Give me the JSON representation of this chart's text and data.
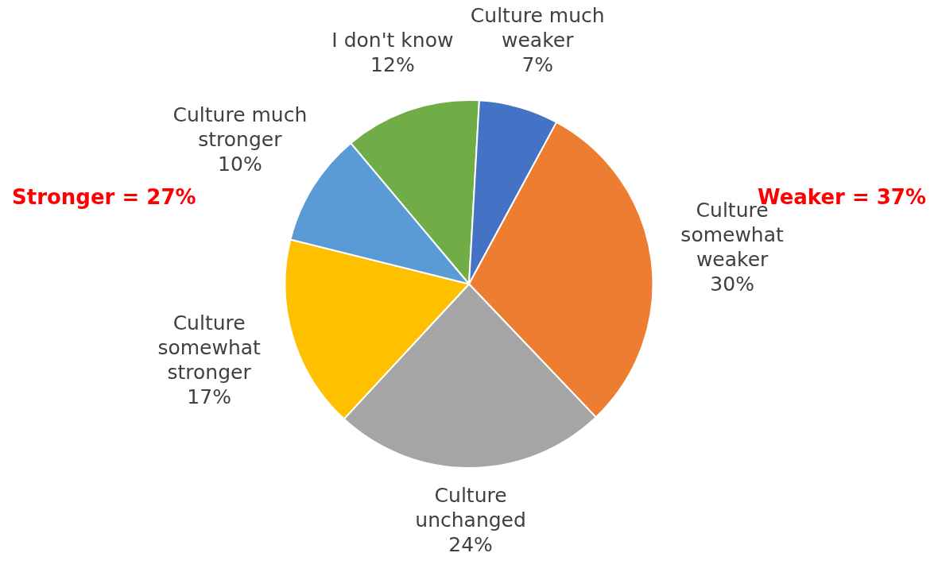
{
  "chart_data": {
    "type": "pie",
    "categories": [
      "I don't know",
      "Culture much weaker",
      "Culture somewhat weaker",
      "Culture unchanged",
      "Culture somewhat stronger",
      "Culture much stronger"
    ],
    "values": [
      12,
      7,
      30,
      24,
      17,
      10
    ],
    "value_labels": [
      "12%",
      "7%",
      "30%",
      "24%",
      "17%",
      "10%"
    ],
    "colors": [
      "#70ad47",
      "#4472c4",
      "#ed7d31",
      "#a5a5a5",
      "#ffc000",
      "#5b9bd5"
    ],
    "annotations": [
      "Stronger = 27%",
      "Weaker = 37%"
    ],
    "legend": false
  }
}
